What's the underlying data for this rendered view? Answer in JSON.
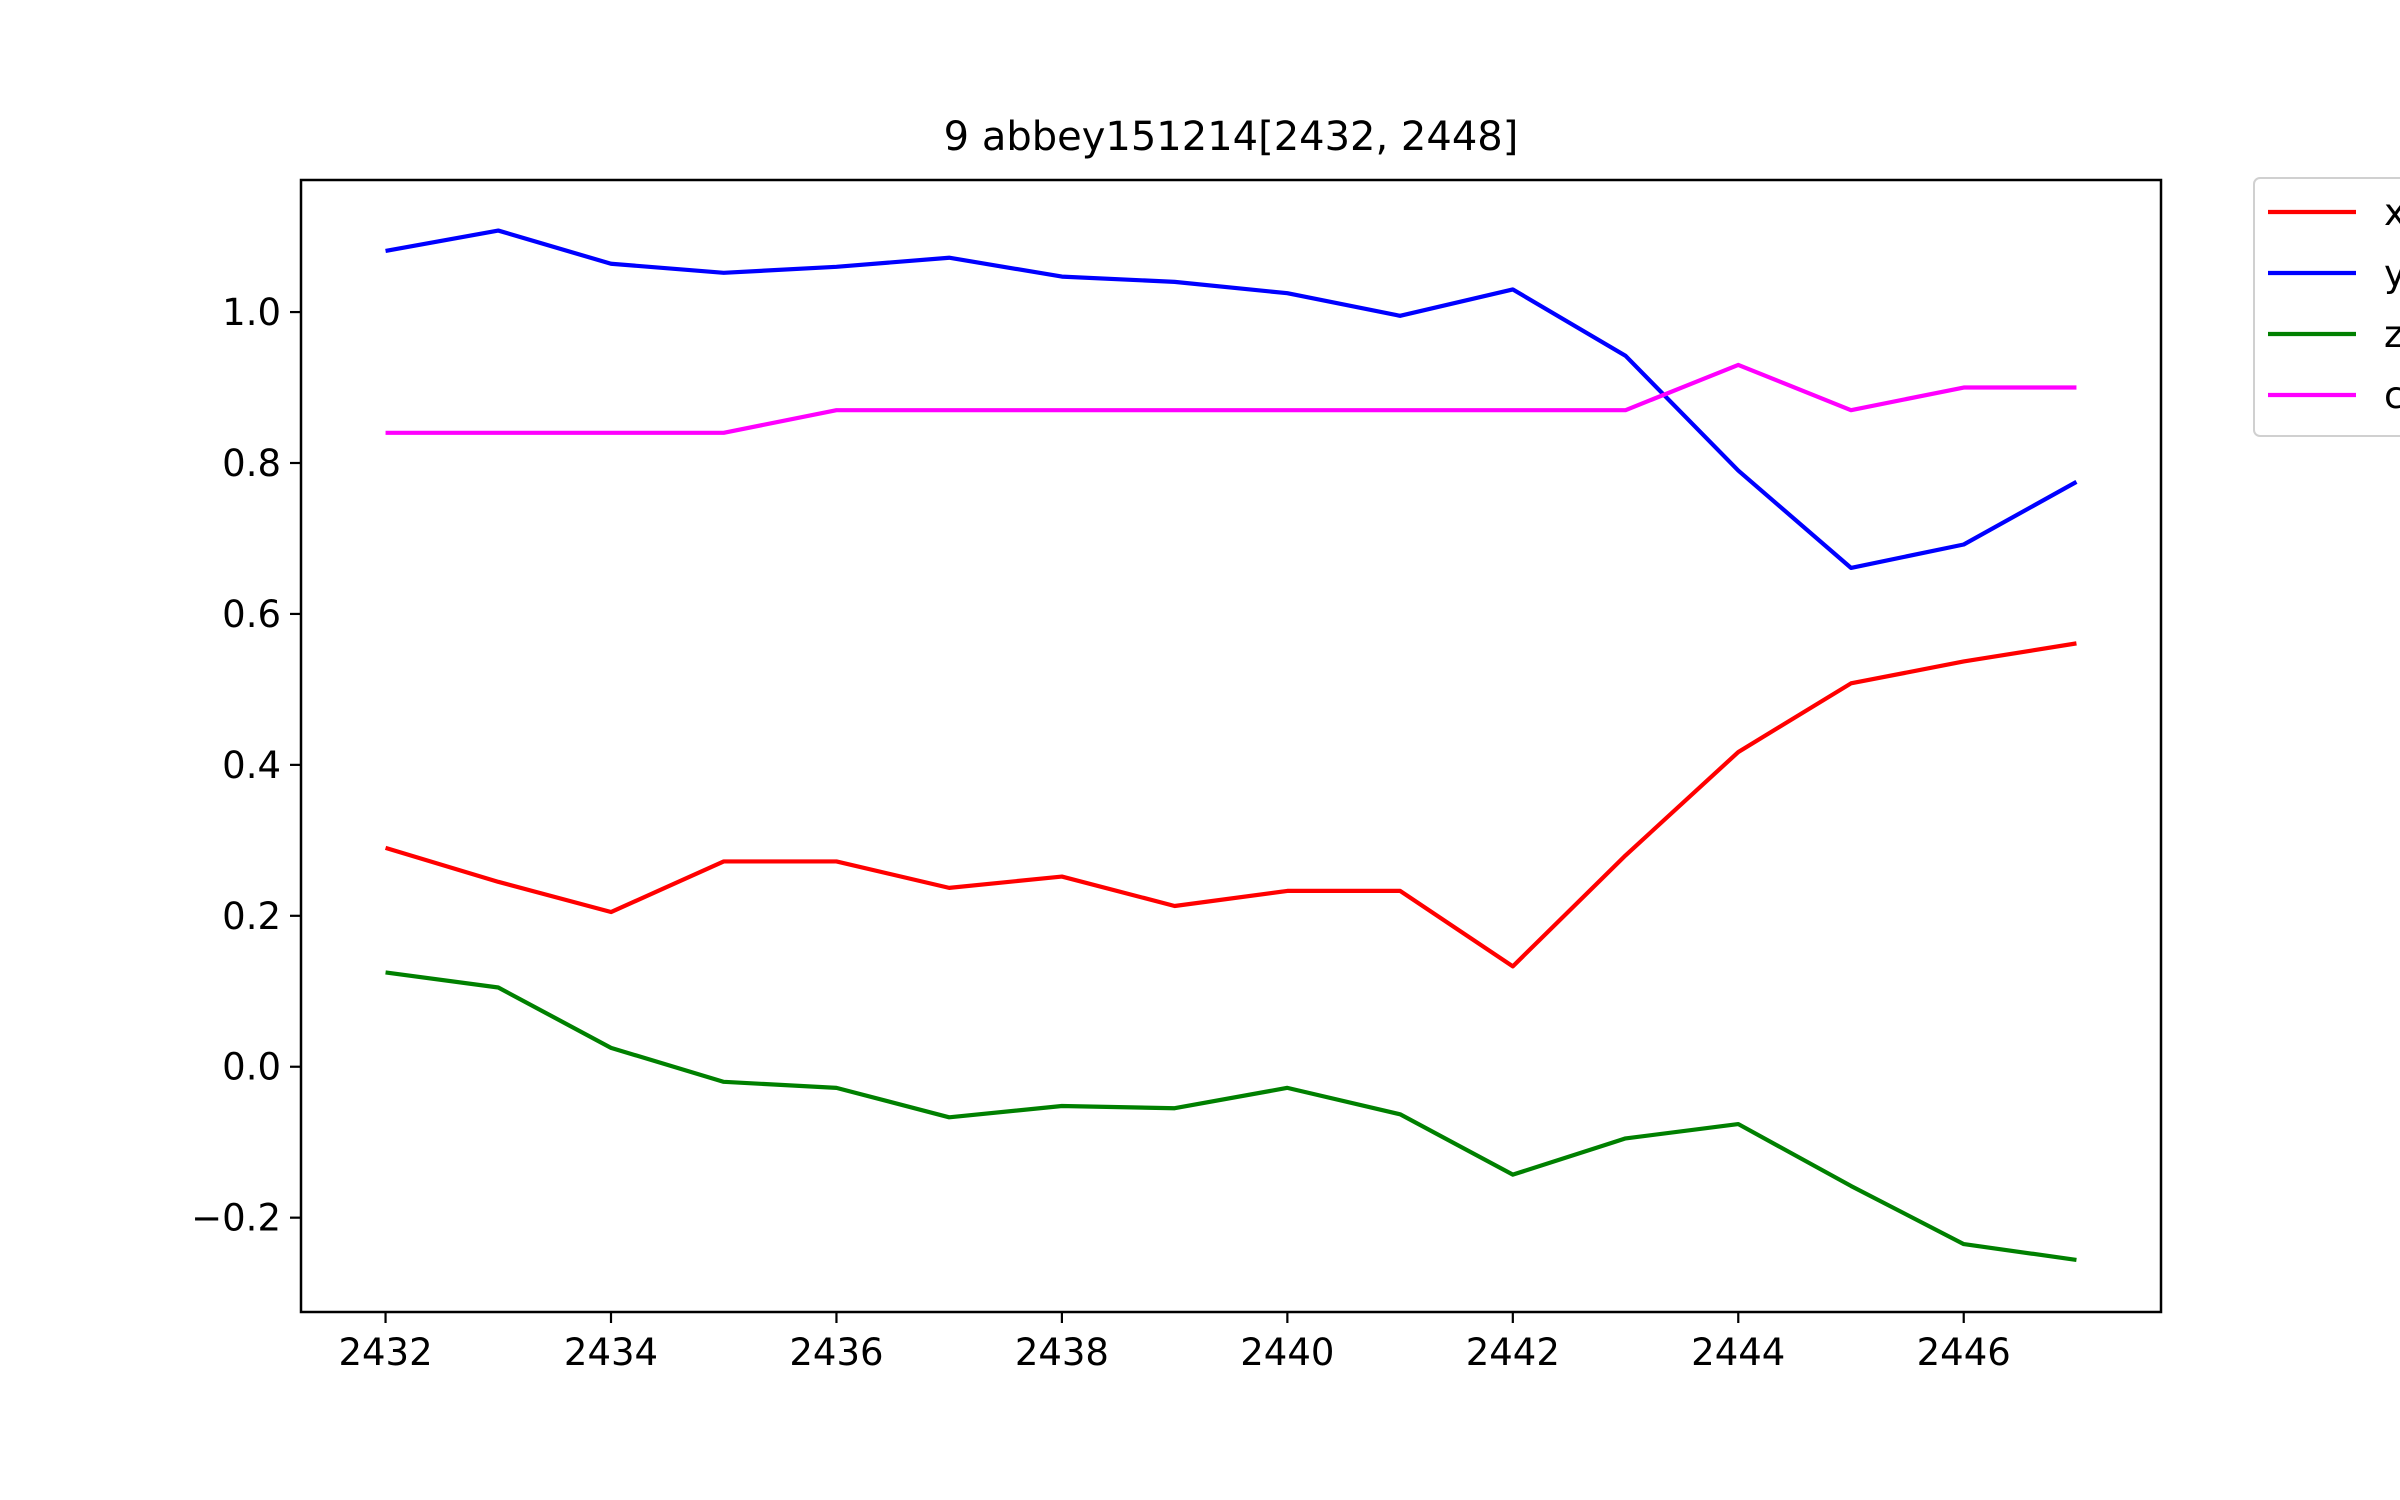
{
  "chart_data": {
    "type": "line",
    "title": "9 abbey151214[2432, 2448]",
    "xlabel": "",
    "ylabel": "",
    "xlim": [
      2431.25,
      2447.75
    ],
    "ylim": [
      -0.325,
      1.175
    ],
    "x_ticks": [
      2432,
      2434,
      2436,
      2438,
      2440,
      2442,
      2444,
      2446
    ],
    "x_tick_labels": [
      "2432",
      "2434",
      "2436",
      "2438",
      "2440",
      "2442",
      "2444",
      "2446"
    ],
    "y_ticks": [
      -0.2,
      0.0,
      0.2,
      0.4,
      0.6,
      0.8,
      1.0
    ],
    "y_tick_labels": [
      "−0.2",
      "0.0",
      "0.2",
      "0.4",
      "0.6",
      "0.8",
      "1.0"
    ],
    "grid": false,
    "legend_position": "outside-top-right",
    "x": [
      2432,
      2433,
      2434,
      2435,
      2436,
      2437,
      2438,
      2439,
      2440,
      2441,
      2442,
      2443,
      2444,
      2445,
      2446,
      2447
    ],
    "series": [
      {
        "name": "x",
        "color": "#ff0000",
        "values": [
          0.29,
          0.245,
          0.205,
          0.272,
          0.272,
          0.237,
          0.252,
          0.213,
          0.233,
          0.233,
          0.133,
          0.28,
          0.417,
          0.508,
          0.537,
          0.561
        ]
      },
      {
        "name": "y",
        "color": "#0000ff",
        "values": [
          1.081,
          1.108,
          1.064,
          1.052,
          1.06,
          1.072,
          1.047,
          1.04,
          1.025,
          0.995,
          1.03,
          0.942,
          0.79,
          0.661,
          0.692,
          0.775
        ]
      },
      {
        "name": "z",
        "color": "#008000",
        "values": [
          0.125,
          0.105,
          0.025,
          -0.02,
          -0.028,
          -0.067,
          -0.052,
          -0.055,
          -0.028,
          -0.063,
          -0.143,
          -0.095,
          -0.076,
          -0.158,
          -0.235,
          -0.256
        ]
      },
      {
        "name": "c",
        "color": "#ff00ff",
        "values": [
          0.84,
          0.84,
          0.84,
          0.84,
          0.87,
          0.87,
          0.87,
          0.87,
          0.87,
          0.87,
          0.87,
          0.87,
          0.93,
          0.87,
          0.9,
          0.9
        ]
      }
    ]
  }
}
